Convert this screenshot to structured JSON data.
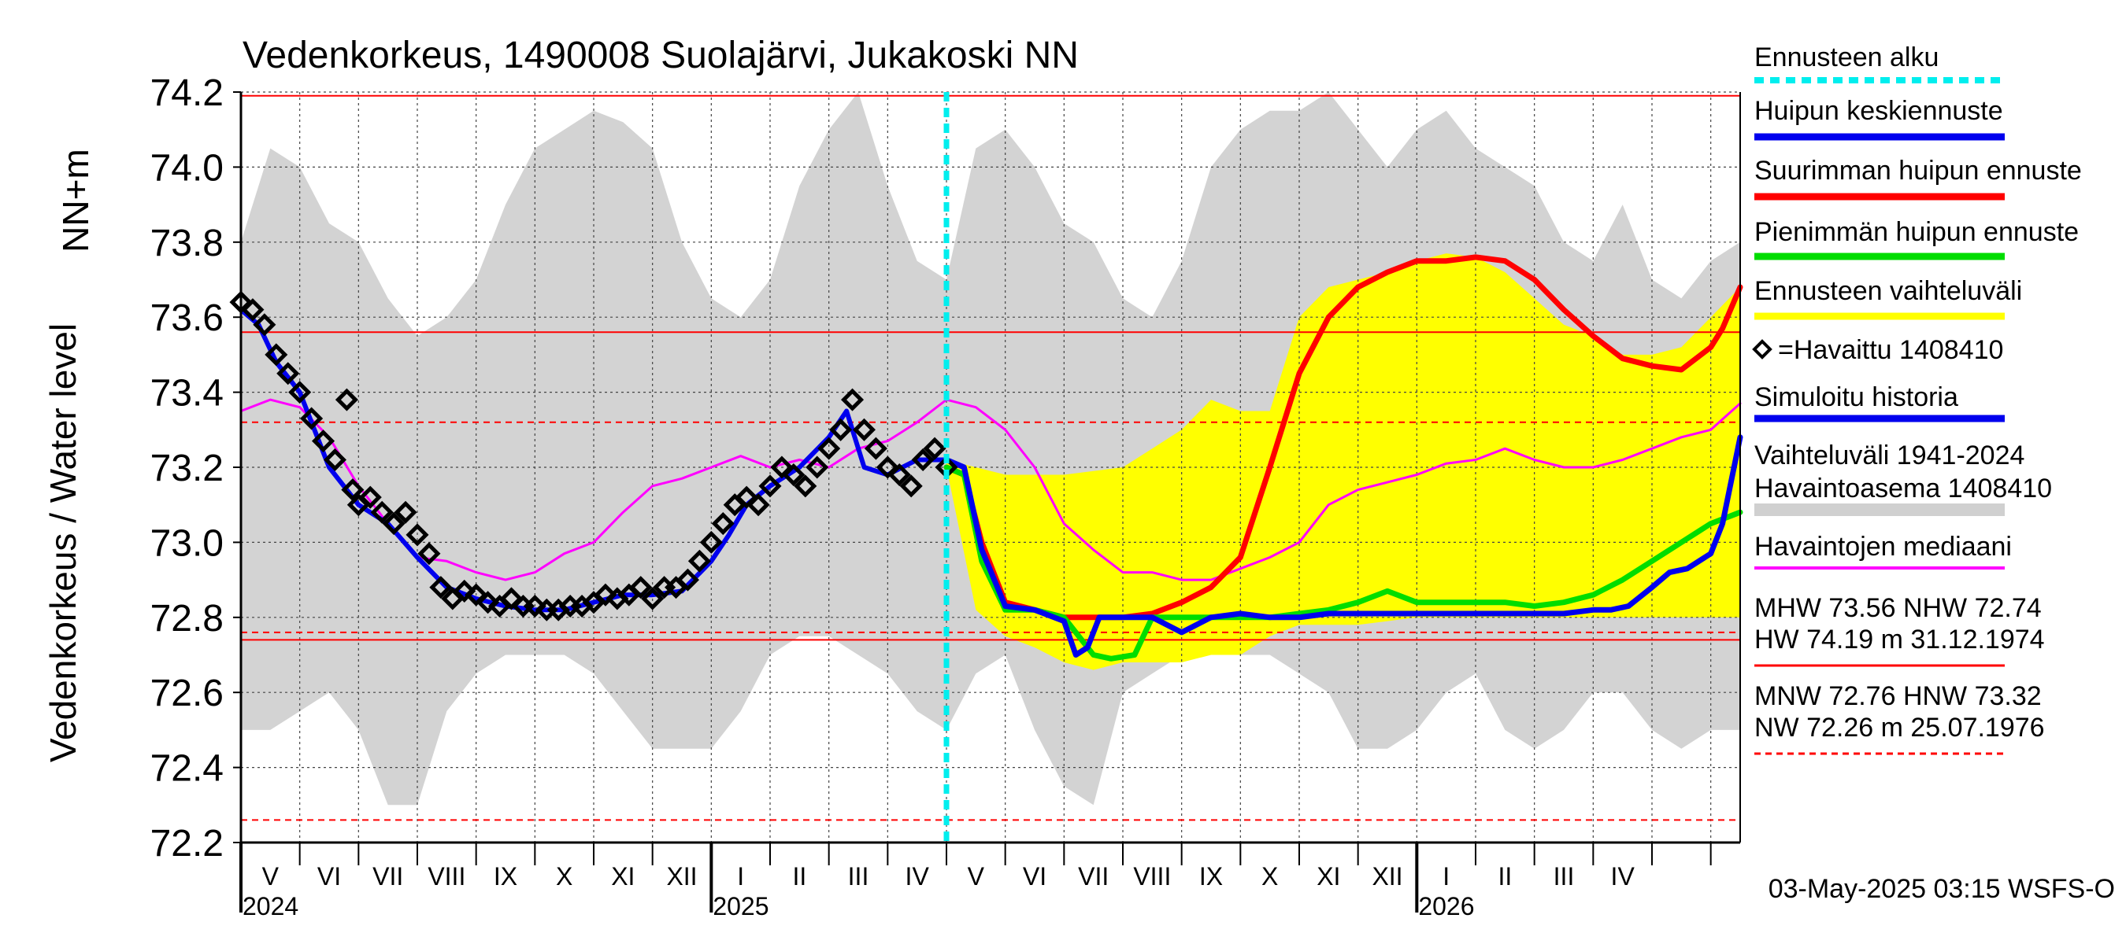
{
  "chart_data": {
    "type": "line",
    "title": "Vedenkorkeus, 1490008 Suolajärvi, Jukakoski NN",
    "ylabel_top": "NN+m",
    "ylabel": "Vedenkorkeus / Water level",
    "ylim": [
      72.2,
      74.2
    ],
    "yticks": [
      "74.2",
      "74.0",
      "73.8",
      "73.6",
      "73.4",
      "73.2",
      "73.0",
      "72.8",
      "72.6",
      "72.4",
      "72.2"
    ],
    "x_range_months": [
      0,
      25.5
    ],
    "month_labels": [
      "V",
      "VI",
      "VII",
      "VIII",
      "IX",
      "X",
      "XI",
      "XII",
      "I",
      "II",
      "III",
      "IV",
      "V",
      "VI",
      "VII",
      "VIII",
      "IX",
      "X",
      "XI",
      "XII",
      "I",
      "II",
      "III",
      "IV"
    ],
    "year_labels": [
      {
        "label": "2024",
        "month": 0
      },
      {
        "label": "2025",
        "month": 8
      },
      {
        "label": "2026",
        "month": 20
      }
    ],
    "forecast_start_month": 12,
    "reference_lines": [
      {
        "name": "HW",
        "value": 74.19,
        "style": "solid"
      },
      {
        "name": "MHW",
        "value": 73.56,
        "style": "solid"
      },
      {
        "name": "HNW",
        "value": 73.32,
        "style": "dashed"
      },
      {
        "name": "MNW",
        "value": 72.76,
        "style": "dashed"
      },
      {
        "name": "NHW",
        "value": 72.74,
        "style": "solid"
      },
      {
        "name": "NW",
        "value": 72.26,
        "style": "dashed"
      }
    ],
    "historical_range": {
      "x": [
        0,
        0.5,
        1,
        1.5,
        2,
        2.5,
        3,
        3.5,
        4,
        4.5,
        5,
        5.5,
        6,
        6.5,
        7,
        7.5,
        8,
        8.5,
        9,
        9.5,
        10,
        10.5,
        11,
        11.5,
        12,
        12.5,
        13,
        13.5,
        14,
        14.5,
        15,
        15.5,
        16,
        16.5,
        17,
        17.5,
        18,
        18.5,
        19,
        19.5,
        20,
        20.5,
        21,
        21.5,
        22,
        22.5,
        23,
        23.5,
        24,
        24.5,
        25,
        25.5
      ],
      "upper": [
        73.8,
        74.05,
        74.0,
        73.85,
        73.8,
        73.65,
        73.55,
        73.6,
        73.7,
        73.9,
        74.05,
        74.1,
        74.15,
        74.12,
        74.05,
        73.8,
        73.65,
        73.6,
        73.7,
        73.95,
        74.1,
        74.2,
        73.95,
        73.75,
        73.7,
        74.05,
        74.1,
        74.0,
        73.85,
        73.8,
        73.65,
        73.6,
        73.75,
        74.0,
        74.1,
        74.15,
        74.15,
        74.2,
        74.1,
        74.0,
        74.1,
        74.15,
        74.05,
        74.0,
        73.95,
        73.8,
        73.75,
        73.9,
        73.7,
        73.65,
        73.75,
        73.8
      ],
      "lower": [
        72.5,
        72.5,
        72.55,
        72.6,
        72.5,
        72.3,
        72.3,
        72.55,
        72.65,
        72.7,
        72.7,
        72.7,
        72.65,
        72.55,
        72.45,
        72.45,
        72.45,
        72.55,
        72.7,
        72.75,
        72.75,
        72.7,
        72.65,
        72.55,
        72.5,
        72.65,
        72.7,
        72.5,
        72.35,
        72.3,
        72.6,
        72.65,
        72.7,
        72.7,
        72.7,
        72.7,
        72.65,
        72.6,
        72.45,
        72.45,
        72.5,
        72.6,
        72.65,
        72.5,
        72.45,
        72.5,
        72.6,
        72.6,
        72.5,
        72.45,
        72.5,
        72.5
      ]
    },
    "forecast_range": {
      "x": [
        12,
        12.5,
        13,
        13.5,
        14,
        14.5,
        15,
        15.5,
        16,
        16.5,
        17,
        17.5,
        18,
        18.5,
        19,
        19.5,
        20,
        20.5,
        21,
        21.5,
        22,
        22.5,
        23,
        23.5,
        24,
        24.5,
        25,
        25.5
      ],
      "upper": [
        73.22,
        73.2,
        73.18,
        73.18,
        73.18,
        73.19,
        73.2,
        73.25,
        73.3,
        73.38,
        73.35,
        73.35,
        73.6,
        73.68,
        73.7,
        73.72,
        73.75,
        73.77,
        73.76,
        73.72,
        73.65,
        73.58,
        73.55,
        73.5,
        73.5,
        73.52,
        73.6,
        73.68
      ],
      "lower": [
        73.2,
        72.82,
        72.75,
        72.72,
        72.68,
        72.66,
        72.68,
        72.68,
        72.68,
        72.7,
        72.7,
        72.75,
        72.78,
        72.78,
        72.78,
        72.79,
        72.8,
        72.8,
        72.8,
        72.8,
        72.8,
        72.8,
        72.8,
        72.8,
        72.8,
        72.8,
        72.8,
        72.8
      ]
    },
    "series": [
      {
        "name": "Havaintojen mediaani",
        "color": "#ff00ff",
        "x": [
          0,
          0.5,
          1,
          1.5,
          2,
          2.5,
          3,
          3.5,
          4,
          4.5,
          5,
          5.5,
          6,
          6.5,
          7,
          7.5,
          8,
          8.5,
          9,
          9.5,
          10,
          10.5,
          11,
          11.5,
          12,
          12.5,
          13,
          13.5,
          14,
          14.5,
          15,
          15.5,
          16,
          16.5,
          17,
          17.5,
          18,
          18.5,
          19,
          19.5,
          20,
          20.5,
          21,
          21.5,
          22,
          22.5,
          23,
          23.5,
          24,
          24.5,
          25,
          25.5
        ],
        "y": [
          73.35,
          73.38,
          73.36,
          73.28,
          73.15,
          73.05,
          72.96,
          72.95,
          72.92,
          72.9,
          72.92,
          72.97,
          73.0,
          73.08,
          73.15,
          73.17,
          73.2,
          73.23,
          73.2,
          73.22,
          73.2,
          73.25,
          73.27,
          73.32,
          73.38,
          73.36,
          73.3,
          73.2,
          73.05,
          72.98,
          72.92,
          72.92,
          72.9,
          72.9,
          72.93,
          72.96,
          73.0,
          73.1,
          73.14,
          73.16,
          73.18,
          73.21,
          73.22,
          73.25,
          73.22,
          73.2,
          73.2,
          73.22,
          73.25,
          73.28,
          73.3,
          73.37
        ]
      },
      {
        "name": "Suurimman huipun ennuste",
        "color": "#ff0000",
        "x": [
          12,
          12.3,
          12.6,
          13,
          13.5,
          14,
          14.5,
          15,
          15.5,
          16,
          16.5,
          17,
          17.5,
          18,
          18.5,
          19,
          19.5,
          20,
          20.5,
          21,
          21.5,
          22,
          22.5,
          23,
          23.5,
          24,
          24.5,
          25,
          25.2,
          25.5
        ],
        "y": [
          73.2,
          73.18,
          73.0,
          72.84,
          72.82,
          72.8,
          72.8,
          72.8,
          72.81,
          72.84,
          72.88,
          72.96,
          73.2,
          73.45,
          73.6,
          73.68,
          73.72,
          73.75,
          73.75,
          73.76,
          73.75,
          73.7,
          73.62,
          73.55,
          73.49,
          73.47,
          73.46,
          73.52,
          73.57,
          73.68
        ]
      },
      {
        "name": "Pienimmän huipun ennuste",
        "color": "#00dd00",
        "x": [
          12,
          12.3,
          12.6,
          13,
          13.5,
          14,
          14.5,
          14.8,
          15.2,
          15.5,
          16,
          16.5,
          17,
          17.5,
          18,
          18.5,
          19,
          19.5,
          20,
          20.5,
          21,
          21.5,
          22,
          22.5,
          23,
          23.5,
          24,
          24.5,
          25,
          25.5
        ],
        "y": [
          73.2,
          73.18,
          72.95,
          72.82,
          72.82,
          72.8,
          72.7,
          72.69,
          72.7,
          72.8,
          72.8,
          72.8,
          72.8,
          72.8,
          72.81,
          72.82,
          72.84,
          72.87,
          72.84,
          72.84,
          72.84,
          72.84,
          72.83,
          72.84,
          72.86,
          72.9,
          72.95,
          73.0,
          73.05,
          73.08
        ]
      },
      {
        "name": "Huipun keskiennuste",
        "color": "#0000ee",
        "x": [
          12,
          12.3,
          12.6,
          13,
          13.5,
          14,
          14.2,
          14.4,
          14.6,
          15,
          15.5,
          16,
          16.5,
          17,
          17.5,
          18,
          18.5,
          19,
          19.5,
          20,
          20.5,
          21,
          21.5,
          22,
          22.5,
          23,
          23.3,
          23.6,
          24,
          24.3,
          24.6,
          25,
          25.2,
          25.5
        ],
        "y": [
          73.22,
          73.2,
          72.98,
          72.83,
          72.82,
          72.79,
          72.7,
          72.72,
          72.8,
          72.8,
          72.8,
          72.76,
          72.8,
          72.81,
          72.8,
          72.8,
          72.81,
          72.81,
          72.81,
          72.81,
          72.81,
          72.81,
          72.81,
          72.81,
          72.81,
          72.82,
          72.82,
          72.83,
          72.88,
          72.92,
          72.93,
          72.97,
          73.05,
          73.28
        ]
      },
      {
        "name": "Simuloitu historia",
        "color": "#0000ee",
        "x": [
          0,
          0.3,
          0.6,
          1,
          1.5,
          2,
          2.5,
          3,
          3.5,
          4,
          4.5,
          5,
          5.5,
          6,
          6.5,
          7,
          7.5,
          8,
          8.3,
          8.6,
          9,
          9.5,
          10,
          10.3,
          10.6,
          11,
          11.5,
          12
        ],
        "y": [
          73.62,
          73.58,
          73.48,
          73.4,
          73.2,
          73.1,
          73.05,
          72.96,
          72.88,
          72.85,
          72.83,
          72.82,
          72.82,
          72.84,
          72.86,
          72.86,
          72.87,
          72.95,
          73.02,
          73.1,
          73.15,
          73.2,
          73.28,
          73.35,
          73.2,
          73.18,
          73.22,
          73.22
        ]
      },
      {
        "name": "Havaittu 1408410",
        "color": "#000000",
        "x": [
          0,
          0.2,
          0.4,
          0.6,
          0.8,
          1,
          1.2,
          1.4,
          1.6,
          1.8,
          1.9,
          2,
          2.2,
          2.4,
          2.6,
          2.8,
          3,
          3.2,
          3.4,
          3.6,
          3.8,
          4,
          4.2,
          4.4,
          4.6,
          4.8,
          5,
          5.2,
          5.4,
          5.6,
          5.8,
          6,
          6.2,
          6.4,
          6.6,
          6.8,
          7,
          7.2,
          7.4,
          7.6,
          7.8,
          8,
          8.2,
          8.4,
          8.6,
          8.8,
          9,
          9.2,
          9.4,
          9.6,
          9.8,
          10,
          10.2,
          10.4,
          10.6,
          10.8,
          11,
          11.2,
          11.4,
          11.6,
          11.8,
          12
        ],
        "y": [
          73.64,
          73.62,
          73.58,
          73.5,
          73.45,
          73.4,
          73.33,
          73.27,
          73.22,
          73.38,
          73.14,
          73.1,
          73.12,
          73.08,
          73.05,
          73.08,
          73.02,
          72.97,
          72.88,
          72.85,
          72.87,
          72.86,
          72.84,
          72.83,
          72.85,
          72.83,
          72.83,
          72.82,
          72.82,
          72.83,
          72.83,
          72.84,
          72.86,
          72.85,
          72.86,
          72.88,
          72.85,
          72.88,
          72.88,
          72.9,
          72.95,
          73.0,
          73.05,
          73.1,
          73.12,
          73.1,
          73.15,
          73.2,
          73.18,
          73.15,
          73.2,
          73.25,
          73.3,
          73.38,
          73.3,
          73.25,
          73.2,
          73.18,
          73.15,
          73.22,
          73.25,
          73.2
        ]
      }
    ],
    "legend": [
      {
        "label": "Ennusteen alku",
        "color": "#00eeee",
        "kind": "dashed"
      },
      {
        "label": "Huipun keskiennuste",
        "color": "#0000ee",
        "kind": "line"
      },
      {
        "label": "Suurimman huipun ennuste",
        "color": "#ff0000",
        "kind": "line"
      },
      {
        "label": "Pienimmän huipun ennuste",
        "color": "#00dd00",
        "kind": "line"
      },
      {
        "label": "Ennusteen vaihteluväli",
        "color": "#ffff00",
        "kind": "line"
      },
      {
        "label": "=Havaittu 1408410",
        "color": "#000000",
        "kind": "marker"
      },
      {
        "label": "Simuloitu historia",
        "color": "#0000ee",
        "kind": "line"
      },
      {
        "label": "Vaihteluväli 1941-2024",
        "color": "#d0d0d0",
        "kind": "none"
      },
      {
        "label": " Havaintoasema 1408410",
        "color": "#d0d0d0",
        "kind": "band"
      },
      {
        "label": "Havaintojen mediaani",
        "color": "#ff00ff",
        "kind": "line"
      }
    ],
    "stats": [
      {
        "line1": "MHW  73.56 NHW  72.74",
        "line2": "HW  74.19 m 31.12.1974",
        "kind": "solid"
      },
      {
        "line1": "MNW  72.76 HNW  73.32",
        "line2": "NW  72.26 m 25.07.1976",
        "kind": "dashed"
      }
    ],
    "footer": "03-May-2025 03:15 WSFS-O"
  }
}
